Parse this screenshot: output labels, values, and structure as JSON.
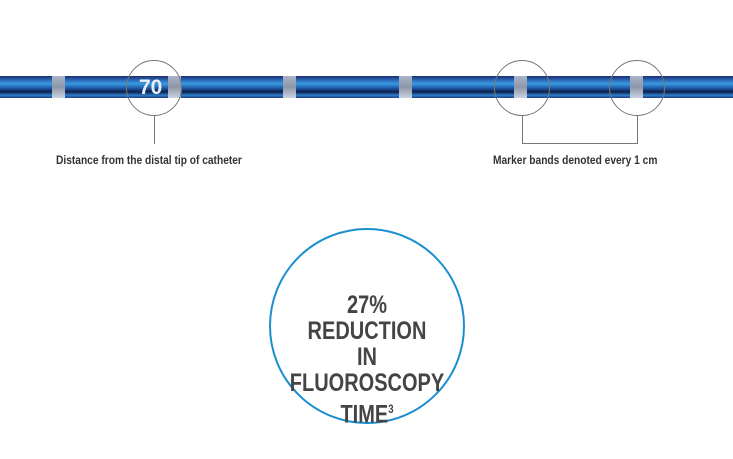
{
  "catheter": {
    "depth_marker": "70",
    "labels": {
      "distance": "Distance from the distal tip of catheter",
      "bands": "Marker bands denoted every 1 cm"
    },
    "colors": {
      "catheter": "#2a66b8",
      "accent": "#1a8fd0"
    }
  },
  "stat": {
    "line1": "27% REDUCTION",
    "line2": "IN FLUOROSCOPY",
    "line3": "TIME",
    "footnote": "3"
  }
}
